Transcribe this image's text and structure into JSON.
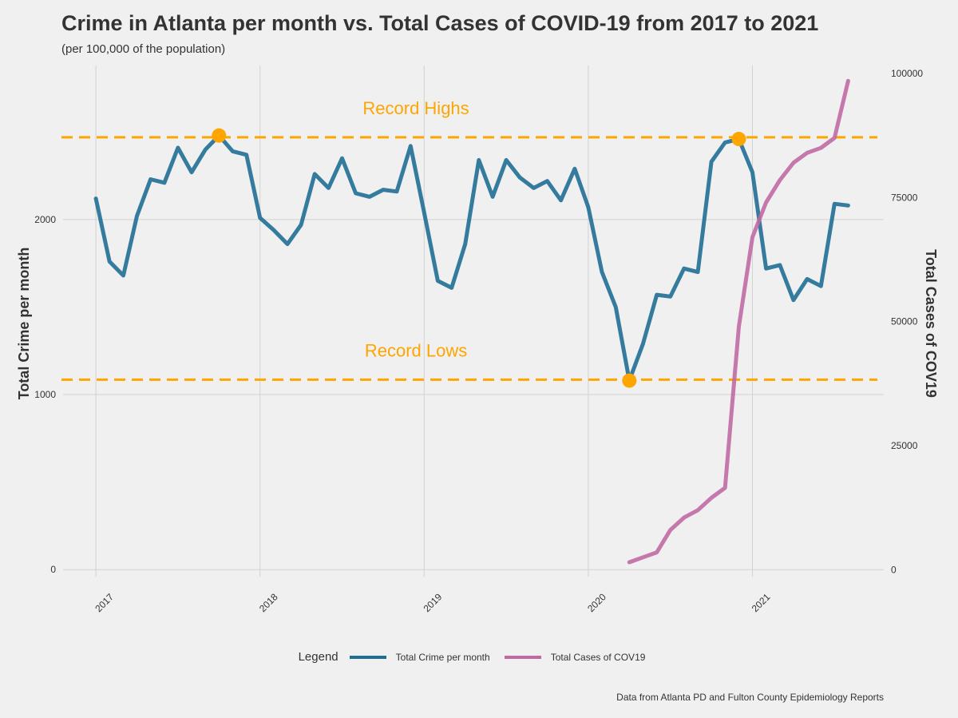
{
  "header": {
    "title": "Crime in Atlanta per month vs. Total Cases of COVID-19 from 2017 to 2021",
    "subtitle": "(per 100,000 of the population)"
  },
  "caption": "Data from Atlanta PD and Fulton County Epidemiology Reports",
  "legend": {
    "title": "Legend",
    "items": [
      {
        "label": "Total Crime per month",
        "color": "#1f6e94"
      },
      {
        "label": "Total Cases of COV19",
        "color": "#c06aa3"
      }
    ]
  },
  "chart_data": {
    "type": "line",
    "ylabel_left": "Total Crime per month",
    "ylabel_right": "Total Cases of COV19",
    "xlim": [
      2016.8,
      2021.8
    ],
    "ylim_left": [
      -40,
      2880
    ],
    "ylim_right": [
      -1390,
      101600
    ],
    "x_ticks": [
      2017,
      2018,
      2019,
      2020,
      2021
    ],
    "x_tick_labels": [
      "2017",
      "2018",
      "2019",
      "2020",
      "2021"
    ],
    "left_ticks": [
      0,
      1000,
      2000
    ],
    "left_tick_labels": [
      "0",
      "1000",
      "2000"
    ],
    "right_ticks": [
      0,
      25000,
      50000,
      75000,
      100000
    ],
    "right_tick_labels": [
      "0",
      "25000",
      "50000",
      "75000",
      "100000"
    ],
    "grid": true,
    "legend_position": "bottom",
    "series": [
      {
        "name": "Total Crime per month",
        "axis": "left",
        "color": "#1f6e94",
        "x": [
          2017.0,
          2017.083,
          2017.167,
          2017.25,
          2017.333,
          2017.417,
          2017.5,
          2017.583,
          2017.667,
          2017.75,
          2017.833,
          2017.917,
          2018.0,
          2018.083,
          2018.167,
          2018.25,
          2018.333,
          2018.417,
          2018.5,
          2018.583,
          2018.667,
          2018.75,
          2018.833,
          2018.917,
          2019.0,
          2019.083,
          2019.167,
          2019.25,
          2019.333,
          2019.417,
          2019.5,
          2019.583,
          2019.667,
          2019.75,
          2019.833,
          2019.917,
          2020.0,
          2020.083,
          2020.167,
          2020.25,
          2020.333,
          2020.417,
          2020.5,
          2020.583,
          2020.667,
          2020.75,
          2020.833,
          2020.917,
          2021.0,
          2021.083,
          2021.167,
          2021.25,
          2021.333,
          2021.417,
          2021.5,
          2021.583
        ],
        "values": [
          2120,
          1760,
          1680,
          2020,
          2230,
          2210,
          2410,
          2270,
          2400,
          2480,
          2390,
          2370,
          2010,
          1940,
          1860,
          1970,
          2260,
          2180,
          2350,
          2150,
          2130,
          2170,
          2160,
          2420,
          2040,
          1650,
          1610,
          1860,
          2340,
          2130,
          2340,
          2240,
          2180,
          2220,
          2110,
          2290,
          2070,
          1700,
          1500,
          1080,
          1290,
          1570,
          1560,
          1720,
          1700,
          2330,
          2440,
          2460,
          2270,
          1720,
          1740,
          1540,
          1660,
          1620,
          2090,
          2080
        ]
      },
      {
        "name": "Total Cases of COV19",
        "axis": "right",
        "color": "#c06aa3",
        "x": [
          2020.25,
          2020.333,
          2020.417,
          2020.5,
          2020.583,
          2020.667,
          2020.75,
          2020.833,
          2020.917,
          2021.0,
          2021.083,
          2021.167,
          2021.25,
          2021.333,
          2021.417,
          2021.5,
          2021.583
        ],
        "values": [
          1500,
          2500,
          3500,
          8000,
          10500,
          12000,
          14500,
          16500,
          49000,
          67000,
          74000,
          78500,
          82000,
          84000,
          85000,
          87000,
          98500
        ]
      }
    ],
    "reference_lines": [
      {
        "label": "Record Highs",
        "value": 2470
      },
      {
        "label": "Record Lows",
        "value": 1085
      }
    ],
    "highlight_points": [
      {
        "x": 2017.75,
        "y": 2480
      },
      {
        "x": 2020.917,
        "y": 2460
      },
      {
        "x": 2020.25,
        "y": 1080
      }
    ],
    "line_color_reference": "#ffa500"
  }
}
